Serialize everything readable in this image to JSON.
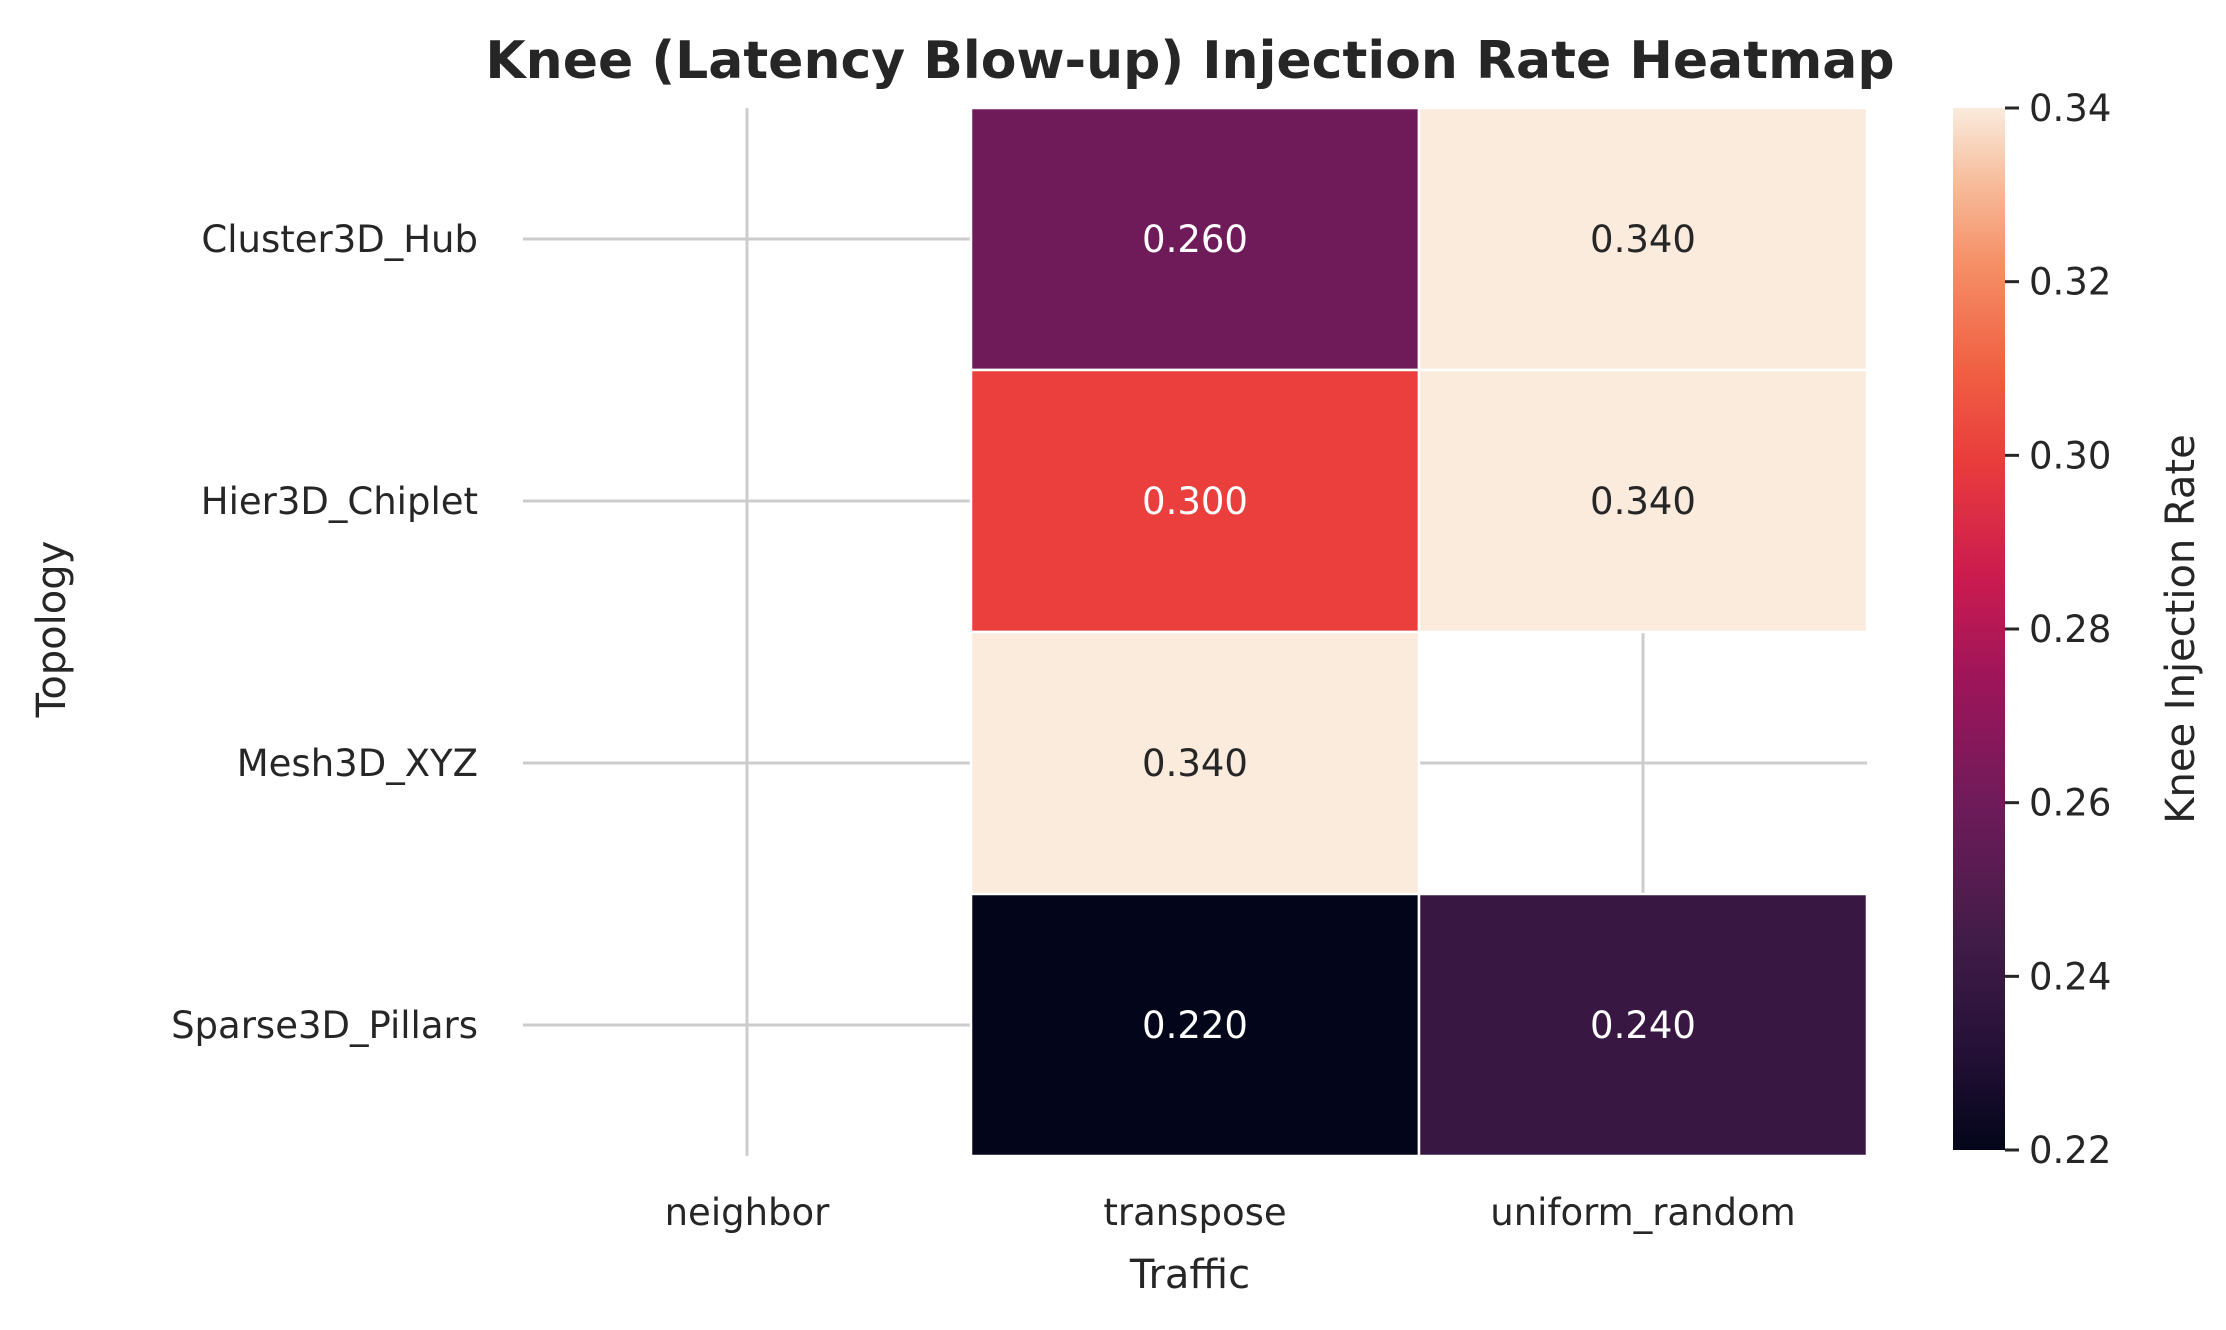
{
  "chart_data": {
    "type": "heatmap",
    "title": "Knee (Latency Blow-up) Injection Rate Heatmap",
    "xlabel": "Traffic",
    "ylabel": "Topology",
    "x_categories": [
      "neighbor",
      "transpose",
      "uniform_random"
    ],
    "y_categories": [
      "Cluster3D_Hub",
      "Hier3D_Chiplet",
      "Mesh3D_XYZ",
      "Sparse3D_Pillars"
    ],
    "values": [
      [
        null,
        0.26,
        0.34
      ],
      [
        null,
        0.3,
        0.34
      ],
      [
        null,
        0.34,
        null
      ],
      [
        null,
        0.22,
        0.24
      ]
    ],
    "value_labels": [
      [
        "",
        "0.260",
        "0.340"
      ],
      [
        "",
        "0.300",
        "0.340"
      ],
      [
        "",
        "0.340",
        ""
      ],
      [
        "",
        "0.220",
        "0.240"
      ]
    ],
    "colorbar": {
      "label": "Knee Injection Rate",
      "range": [
        0.22,
        0.34
      ],
      "ticks": [
        0.22,
        0.24,
        0.26,
        0.28,
        0.3,
        0.32,
        0.34
      ],
      "tick_labels": [
        "0.22",
        "0.24",
        "0.26",
        "0.28",
        "0.30",
        "0.32",
        "0.34"
      ],
      "colormap": "rocket",
      "position": "right"
    },
    "grid": true
  }
}
